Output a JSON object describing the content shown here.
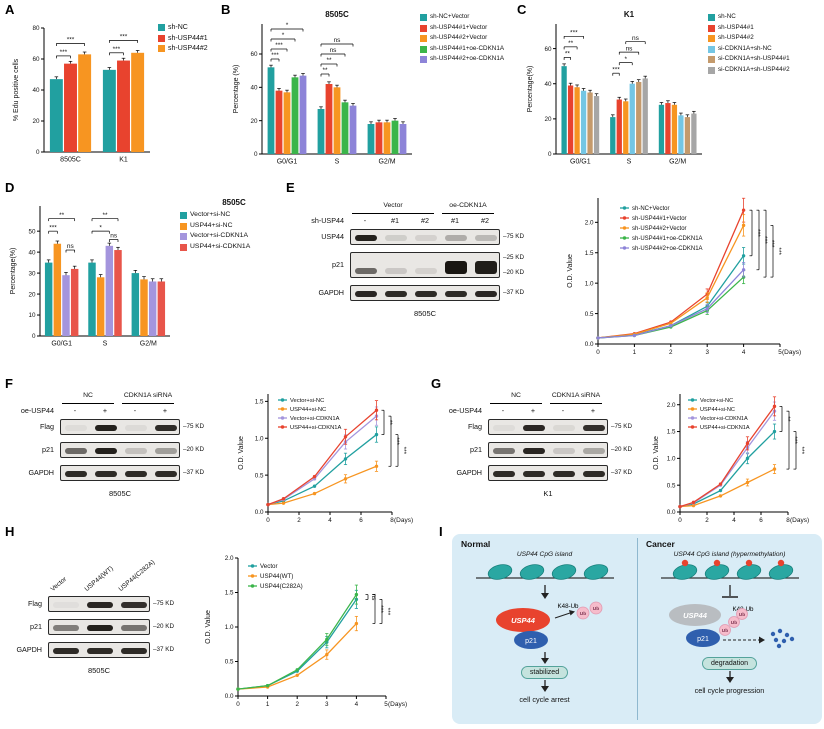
{
  "panels": {
    "A": {
      "letter": "A"
    },
    "B": {
      "letter": "B"
    },
    "C": {
      "letter": "C"
    },
    "D": {
      "letter": "D",
      "title": "8505C"
    },
    "E": {
      "letter": "E",
      "blot": {
        "row_label": "sh-USP44",
        "groups": [
          {
            "label": "Vector",
            "from": 0,
            "to": 2
          },
          {
            "label": "oe-CDKN1A",
            "from": 3,
            "to": 4
          }
        ],
        "lanes": [
          "-",
          "#1",
          "#2",
          "#1",
          "#2"
        ],
        "rows": [
          {
            "label": "USP44",
            "markers": [
              "75 KD"
            ],
            "bands": [
              0.95,
              0.12,
              0.1,
              0.28,
              0.22
            ]
          },
          {
            "label": "p21",
            "markers": [
              "25 KD",
              "20 KD"
            ],
            "tall": true,
            "bands": [
              0.6,
              0.15,
              0.1,
              1,
              0.97
            ]
          },
          {
            "label": "GAPDH",
            "markers": [
              "37 KD"
            ],
            "bands": [
              0.92,
              0.9,
              0.9,
              0.9,
              0.92
            ]
          }
        ],
        "cell_line": "8505C"
      }
    },
    "F": {
      "letter": "F",
      "blot": {
        "row_label": "oe-USP44",
        "groups": [
          {
            "label": "NC",
            "from": 0,
            "to": 1
          },
          {
            "label": "CDKN1A siRNA",
            "from": 2,
            "to": 3
          }
        ],
        "lanes": [
          "-",
          "+",
          "-",
          "+"
        ],
        "rows": [
          {
            "label": "Flag",
            "markers": [
              "75 KD"
            ],
            "bands": [
              0.05,
              0.95,
              0.06,
              0.9
            ]
          },
          {
            "label": "p21",
            "markers": [
              "20 KD"
            ],
            "bands": [
              0.6,
              0.95,
              0.18,
              0.35
            ]
          },
          {
            "label": "GAPDH",
            "markers": [
              "37 KD"
            ],
            "bands": [
              0.9,
              0.9,
              0.9,
              0.9
            ]
          }
        ],
        "cell_line": "8505C"
      }
    },
    "G": {
      "letter": "G",
      "blot": {
        "row_label": "oe-USP44",
        "groups": [
          {
            "label": "NC",
            "from": 0,
            "to": 1
          },
          {
            "label": "CDKN1A siRNA",
            "from": 2,
            "to": 3
          }
        ],
        "lanes": [
          "-",
          "+",
          "-",
          "+"
        ],
        "rows": [
          {
            "label": "Flag",
            "markers": [
              "75 KD"
            ],
            "bands": [
              0.05,
              0.92,
              0.07,
              0.88
            ]
          },
          {
            "label": "p21",
            "markers": [
              "20 KD"
            ],
            "bands": [
              0.55,
              0.92,
              0.15,
              0.3
            ]
          },
          {
            "label": "GAPDH",
            "markers": [
              "37 KD"
            ],
            "bands": [
              0.9,
              0.9,
              0.9,
              0.9
            ]
          }
        ],
        "cell_line": "K1"
      }
    },
    "H": {
      "letter": "H",
      "blot": {
        "diag": [
          "Vector",
          "USP44(WT)",
          "USP44(C282A)"
        ],
        "rows": [
          {
            "label": "Flag",
            "markers": [
              "75 KD"
            ],
            "bands": [
              0.04,
              0.92,
              0.88
            ]
          },
          {
            "label": "p21",
            "markers": [
              "20 KD"
            ],
            "bands": [
              0.5,
              0.95,
              0.55
            ]
          },
          {
            "label": "GAPDH",
            "markers": [
              "37 KD"
            ],
            "bands": [
              0.9,
              0.9,
              0.9
            ]
          }
        ],
        "cell_line": "8505C"
      }
    },
    "I": {
      "letter": "I",
      "normal": {
        "title": "Normal",
        "cpg_label": "USP44 CpG island",
        "usp44": "USP44",
        "k48": "K48-Ub",
        "ub": "Ub",
        "p21": "p21",
        "box": "stabilized",
        "outcome": "cell cycle arrest"
      },
      "cancer": {
        "title": "Cancer",
        "cpg_label": "USP44 CpG island (hypermethylation)",
        "usp44": "USP44",
        "k48": "K48-Ub",
        "ub": "Ub",
        "p21": "p21",
        "box": "degradation",
        "outcome": "cell cycle progression"
      }
    }
  },
  "chart_data": [
    {
      "id": "A",
      "type": "bar",
      "title": "",
      "ylabel": "% Edu positive cells",
      "ylim": [
        0,
        80
      ],
      "yticks": [
        0,
        20,
        40,
        60,
        80
      ],
      "categories": [
        "8505C",
        "K1"
      ],
      "series": [
        {
          "name": "sh-NC",
          "color": "#21a0a0",
          "values": [
            47,
            53
          ],
          "err": [
            1.5,
            1.5
          ]
        },
        {
          "name": "sh-USP44#1",
          "color": "#e8432e",
          "values": [
            57,
            59
          ],
          "err": [
            1.5,
            1.5
          ]
        },
        {
          "name": "sh-USP44#2",
          "color": "#f79521",
          "values": [
            63,
            64
          ],
          "err": [
            1.5,
            1.5
          ]
        }
      ],
      "sig": [
        {
          "cat": 0,
          "s1": 0,
          "s2": 1,
          "y": 62,
          "label": "***"
        },
        {
          "cat": 0,
          "s1": 0,
          "s2": 2,
          "y": 70,
          "label": "***"
        },
        {
          "cat": 1,
          "s1": 0,
          "s2": 1,
          "y": 64,
          "label": "***"
        },
        {
          "cat": 1,
          "s1": 0,
          "s2": 2,
          "y": 72,
          "label": "***"
        }
      ]
    },
    {
      "id": "B",
      "type": "bar",
      "title": "8505C",
      "ylabel": "Percentage (%)",
      "ylim": [
        0,
        78
      ],
      "yticks": [
        0,
        20,
        40,
        60
      ],
      "categories": [
        "G0/G1",
        "S",
        "G2/M"
      ],
      "series": [
        {
          "name": "sh-NC+Vector",
          "color": "#21a0a0",
          "values": [
            52,
            27,
            18
          ]
        },
        {
          "name": "sh-USP44#1+Vector",
          "color": "#e8432e",
          "values": [
            38,
            42,
            19
          ]
        },
        {
          "name": "sh-USP44#2+Vector",
          "color": "#f79521",
          "values": [
            37,
            40,
            19
          ]
        },
        {
          "name": "sh-USP44#1+oe-CDKN1A",
          "color": "#3bb54a",
          "values": [
            46,
            31,
            20
          ]
        },
        {
          "name": "sh-USP44#2+oe-CDKN1A",
          "color": "#8d84d8",
          "values": [
            47,
            29,
            18
          ]
        }
      ],
      "sig": [
        {
          "cat": 0,
          "s1": 0,
          "s2": 1,
          "y": 57,
          "label": "***"
        },
        {
          "cat": 0,
          "s1": 0,
          "s2": 2,
          "y": 63,
          "label": "***"
        },
        {
          "cat": 0,
          "s1": 0,
          "s2": 3,
          "y": 69,
          "label": "*"
        },
        {
          "cat": 0,
          "s1": 0,
          "s2": 4,
          "y": 75,
          "label": "*"
        },
        {
          "cat": 1,
          "s1": 0,
          "s2": 1,
          "y": 48,
          "label": "**"
        },
        {
          "cat": 1,
          "s1": 0,
          "s2": 2,
          "y": 54,
          "label": "**"
        },
        {
          "cat": 1,
          "s1": 0,
          "s2": 3,
          "y": 60,
          "label": "ns"
        },
        {
          "cat": 1,
          "s1": 0,
          "s2": 4,
          "y": 66,
          "label": "ns"
        }
      ]
    },
    {
      "id": "C",
      "type": "bar",
      "title": "K1",
      "ylabel": "Percentage(%)",
      "ylim": [
        0,
        74
      ],
      "yticks": [
        0,
        20,
        40,
        60
      ],
      "categories": [
        "G0/G1",
        "S",
        "G2/M"
      ],
      "series": [
        {
          "name": "sh-NC",
          "color": "#21a0a0",
          "values": [
            50,
            21,
            28
          ]
        },
        {
          "name": "sh-USP44#1",
          "color": "#e8432e",
          "values": [
            39,
            31,
            29
          ]
        },
        {
          "name": "sh-USP44#2",
          "color": "#f79521",
          "values": [
            38,
            30,
            28
          ]
        },
        {
          "name": "si-CDKN1A+sh-NC",
          "color": "#74c6e4",
          "values": [
            36,
            40,
            22
          ]
        },
        {
          "name": "si-CDKN1A+sh-USP44#1",
          "color": "#c49a6c",
          "values": [
            35,
            41,
            21
          ]
        },
        {
          "name": "si-CDKN1A+sh-USP44#2",
          "color": "#a6a6a6",
          "values": [
            33,
            43,
            23
          ]
        }
      ],
      "sig": [
        {
          "cat": 0,
          "s1": 0,
          "s2": 1,
          "y": 55,
          "label": "**"
        },
        {
          "cat": 0,
          "s1": 0,
          "s2": 2,
          "y": 61,
          "label": "**"
        },
        {
          "cat": 0,
          "s1": 0,
          "s2": 3,
          "y": 67,
          "label": "***"
        },
        {
          "cat": 1,
          "s1": 0,
          "s2": 1,
          "y": 46,
          "label": "***"
        },
        {
          "cat": 1,
          "s1": 1,
          "s2": 3,
          "y": 52,
          "label": "*"
        },
        {
          "cat": 1,
          "s1": 1,
          "s2": 4,
          "y": 58,
          "label": "ns"
        },
        {
          "cat": 1,
          "s1": 2,
          "s2": 5,
          "y": 64,
          "label": "ns"
        }
      ]
    },
    {
      "id": "D",
      "type": "bar",
      "title": "",
      "ylabel": "Percentage(%)",
      "ylim": [
        0,
        62
      ],
      "yticks": [
        0,
        10,
        20,
        30,
        40,
        50
      ],
      "categories": [
        "G0/G1",
        "S",
        "G2/M"
      ],
      "series": [
        {
          "name": "Vector+si-NC",
          "color": "#21a0a0",
          "values": [
            35,
            35,
            30
          ]
        },
        {
          "name": "USP44+si-NC",
          "color": "#f79521",
          "values": [
            44,
            28,
            27
          ]
        },
        {
          "name": "Vector+si-CDKN1A",
          "color": "#a495dd",
          "values": [
            29,
            43,
            26
          ]
        },
        {
          "name": "USP44+si-CDKN1A",
          "color": "#e8554a",
          "values": [
            32,
            41,
            26
          ]
        }
      ],
      "sig": [
        {
          "cat": 0,
          "s1": 0,
          "s2": 1,
          "y": 50,
          "label": "***"
        },
        {
          "cat": 0,
          "s1": 0,
          "s2": 3,
          "y": 56,
          "label": "**"
        },
        {
          "cat": 0,
          "s1": 2,
          "s2": 3,
          "y": 41,
          "label": "ns"
        },
        {
          "cat": 1,
          "s1": 0,
          "s2": 2,
          "y": 50,
          "label": "*"
        },
        {
          "cat": 1,
          "s1": 0,
          "s2": 3,
          "y": 56,
          "label": "**"
        },
        {
          "cat": 1,
          "s1": 2,
          "s2": 3,
          "y": 46,
          "label": "ns"
        }
      ]
    },
    {
      "id": "E",
      "type": "line",
      "ylabel": "O.D. Value",
      "xlabel": "(Days)",
      "xlim": [
        0,
        5
      ],
      "xticks": [
        0,
        1,
        2,
        3,
        4,
        5
      ],
      "ylim": [
        0,
        2.4
      ],
      "yticks": [
        0,
        0.5,
        1,
        1.5,
        2
      ],
      "x": [
        0,
        1,
        2,
        3,
        4
      ],
      "series": [
        {
          "name": "sh-NC+Vector",
          "color": "#21a0a0",
          "values": [
            0.1,
            0.15,
            0.3,
            0.62,
            1.45
          ]
        },
        {
          "name": "sh-USP44#1+Vector",
          "color": "#e8432e",
          "values": [
            0.1,
            0.17,
            0.36,
            0.82,
            2.2
          ]
        },
        {
          "name": "sh-USP44#2+Vector",
          "color": "#f79521",
          "values": [
            0.1,
            0.16,
            0.34,
            0.76,
            1.95
          ]
        },
        {
          "name": "sh-USP44#1+oe-CDKN1A",
          "color": "#3bb54a",
          "values": [
            0.1,
            0.14,
            0.28,
            0.55,
            1.1
          ]
        },
        {
          "name": "sh-USP44#2+oe-CDKN1A",
          "color": "#8d84d8",
          "values": [
            0.1,
            0.14,
            0.3,
            0.58,
            1.22
          ]
        }
      ],
      "sig": [
        {
          "y1": 2.2,
          "y2": 1.45,
          "label": "***"
        },
        {
          "y1": 2.2,
          "y2": 1.22,
          "label": "***"
        },
        {
          "y1": 2.2,
          "y2": 1.1,
          "label": "***"
        },
        {
          "y1": 1.95,
          "y2": 1.1,
          "label": "***"
        }
      ]
    },
    {
      "id": "F",
      "type": "line",
      "ylabel": "O.D. Value",
      "xlabel": "(Days)",
      "xlim": [
        0,
        8
      ],
      "xticks": [
        0,
        2,
        4,
        6,
        8
      ],
      "ylim": [
        0,
        1.6
      ],
      "yticks": [
        0,
        0.5,
        1,
        1.5
      ],
      "x": [
        0,
        1,
        3,
        5,
        7
      ],
      "series": [
        {
          "name": "Vector+si-NC",
          "color": "#21a0a0",
          "values": [
            0.1,
            0.15,
            0.35,
            0.72,
            1.05
          ]
        },
        {
          "name": "USP44+si-NC",
          "color": "#f79521",
          "values": [
            0.1,
            0.12,
            0.25,
            0.45,
            0.62
          ]
        },
        {
          "name": "Vector+si-CDKN1A",
          "color": "#a495dd",
          "values": [
            0.1,
            0.17,
            0.45,
            0.95,
            1.3
          ]
        },
        {
          "name": "USP44+si-CDKN1A",
          "color": "#e8432e",
          "values": [
            0.1,
            0.18,
            0.48,
            1.02,
            1.38
          ]
        }
      ],
      "sig": [
        {
          "y1": 1.38,
          "y2": 1.05,
          "label": "**"
        },
        {
          "y1": 1.3,
          "y2": 0.62,
          "label": "***"
        },
        {
          "y1": 1.05,
          "y2": 0.62,
          "label": "***"
        }
      ]
    },
    {
      "id": "G",
      "type": "line",
      "ylabel": "O.D. Value",
      "xlabel": "(Days)",
      "xlim": [
        0,
        8
      ],
      "xticks": [
        0,
        2,
        4,
        6,
        8
      ],
      "ylim": [
        0,
        2.2
      ],
      "yticks": [
        0,
        0.5,
        1,
        1.5,
        2
      ],
      "x": [
        0,
        1,
        3,
        5,
        7
      ],
      "series": [
        {
          "name": "Vector+si-NC",
          "color": "#21a0a0",
          "values": [
            0.1,
            0.15,
            0.4,
            1.0,
            1.5
          ]
        },
        {
          "name": "USP44+si-NC",
          "color": "#f79521",
          "values": [
            0.1,
            0.12,
            0.3,
            0.55,
            0.8
          ]
        },
        {
          "name": "Vector+si-CDKN1A",
          "color": "#a495dd",
          "values": [
            0.1,
            0.17,
            0.5,
            1.2,
            1.88
          ]
        },
        {
          "name": "USP44+si-CDKN1A",
          "color": "#e8432e",
          "values": [
            0.1,
            0.18,
            0.52,
            1.28,
            1.97
          ]
        }
      ],
      "sig": [
        {
          "y1": 1.97,
          "y2": 1.5,
          "label": "**"
        },
        {
          "y1": 1.88,
          "y2": 0.8,
          "label": "***"
        },
        {
          "y1": 1.5,
          "y2": 0.8,
          "label": "***"
        }
      ]
    },
    {
      "id": "H",
      "type": "line",
      "ylabel": "O.D. Value",
      "xlabel": "(Days)",
      "xlim": [
        0,
        5
      ],
      "xticks": [
        0,
        1,
        2,
        3,
        4,
        5
      ],
      "ylim": [
        0,
        2
      ],
      "yticks": [
        0,
        0.5,
        1,
        1.5,
        2
      ],
      "x": [
        0,
        1,
        2,
        3,
        4
      ],
      "series": [
        {
          "name": "Vector",
          "color": "#21a0a0",
          "values": [
            0.1,
            0.15,
            0.36,
            0.78,
            1.4
          ]
        },
        {
          "name": "USP44(WT)",
          "color": "#f79521",
          "values": [
            0.1,
            0.13,
            0.3,
            0.6,
            1.05
          ]
        },
        {
          "name": "USP44(C282A)",
          "color": "#3bb54a",
          "values": [
            0.1,
            0.15,
            0.38,
            0.82,
            1.47
          ]
        }
      ],
      "sig": [
        {
          "y1": 1.47,
          "y2": 1.4,
          "label": "ns"
        },
        {
          "y1": 1.47,
          "y2": 1.05,
          "label": "***"
        },
        {
          "y1": 1.4,
          "y2": 1.05,
          "label": "***"
        }
      ]
    }
  ]
}
